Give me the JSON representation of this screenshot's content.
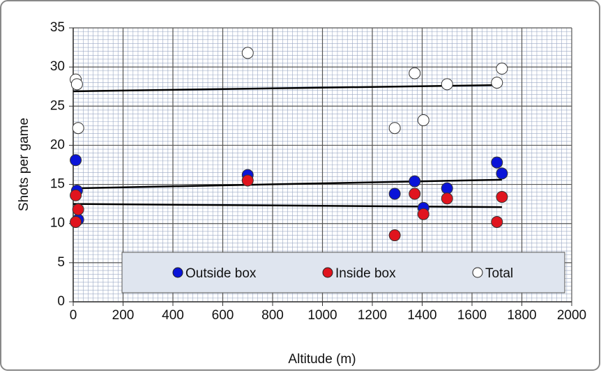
{
  "chart_data": {
    "type": "scatter",
    "x_label": "Altitude (m)",
    "y_label": "Shots per game",
    "xlim": [
      0,
      2000
    ],
    "xticks": [
      0,
      200,
      400,
      600,
      800,
      1000,
      1200,
      1400,
      1600,
      1800,
      2000
    ],
    "ylim": [
      0,
      35
    ],
    "yticks": [
      0,
      5,
      10,
      15,
      20,
      25,
      30,
      35
    ],
    "grid": true,
    "legend": "bottom",
    "series": [
      {
        "name": "Outside box",
        "color": "#0a14d8",
        "x": [
          10,
          15,
          20,
          700,
          1290,
          1370,
          1405,
          1500,
          1700,
          1720
        ],
        "values": [
          18.1,
          14.2,
          10.5,
          16.2,
          13.8,
          15.4,
          12.0,
          14.5,
          17.8,
          16.4
        ],
        "trend": {
          "x": [
            0,
            1720
          ],
          "values": [
            14.5,
            15.6
          ]
        }
      },
      {
        "name": "Inside box",
        "color": "#e0141e",
        "x": [
          10,
          20,
          10,
          700,
          1290,
          1370,
          1405,
          1500,
          1700,
          1720
        ],
        "values": [
          13.6,
          11.8,
          10.2,
          15.5,
          8.5,
          13.8,
          11.2,
          13.2,
          10.2,
          13.4
        ],
        "trend": {
          "x": [
            0,
            1720
          ],
          "values": [
            12.5,
            12.1
          ]
        }
      },
      {
        "name": "Total",
        "color": "#ffffff",
        "x": [
          10,
          15,
          20,
          700,
          1290,
          1370,
          1405,
          1500,
          1700,
          1720
        ],
        "values": [
          28.4,
          27.8,
          22.2,
          31.8,
          22.2,
          29.2,
          23.2,
          27.8,
          28.0,
          29.8
        ],
        "trend": {
          "x": [
            0,
            1720
          ],
          "values": [
            26.9,
            27.7
          ]
        }
      }
    ]
  }
}
